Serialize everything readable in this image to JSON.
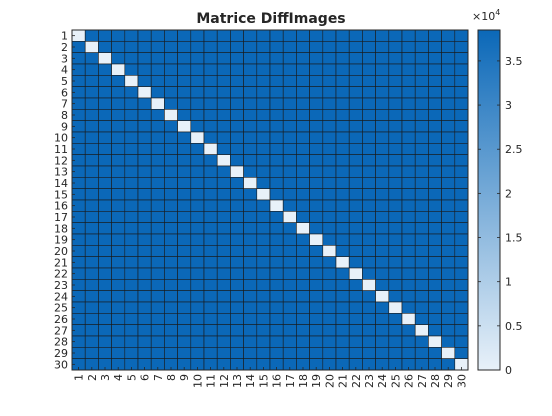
{
  "chart_data": {
    "type": "heatmap",
    "title": "Matrice DiffImages",
    "xlabel": "",
    "ylabel": "",
    "rows": [
      "1",
      "2",
      "3",
      "4",
      "5",
      "6",
      "7",
      "8",
      "9",
      "10",
      "11",
      "12",
      "13",
      "14",
      "15",
      "16",
      "17",
      "18",
      "19",
      "20",
      "21",
      "22",
      "23",
      "24",
      "25",
      "26",
      "27",
      "28",
      "29",
      "30"
    ],
    "cols": [
      "1",
      "2",
      "3",
      "4",
      "5",
      "6",
      "7",
      "8",
      "9",
      "10",
      "11",
      "12",
      "13",
      "14",
      "15",
      "16",
      "17",
      "18",
      "19",
      "20",
      "21",
      "22",
      "23",
      "24",
      "25",
      "26",
      "27",
      "28",
      "29",
      "30"
    ],
    "diagonal_value": 0,
    "off_diagonal_value": 38500,
    "colorbar": {
      "min": 0,
      "max": 38500,
      "ticks": [
        0,
        0.5,
        1,
        1.5,
        2,
        2.5,
        3,
        3.5
      ],
      "tick_labels": [
        "0",
        "0.5",
        "1",
        "1.5",
        "2",
        "2.5",
        "3",
        "3.5"
      ],
      "multiplier_base": "×10",
      "multiplier_exp": "4",
      "color_low": "#e8f1f9",
      "color_high": "#0b68b8"
    },
    "grid": true,
    "cell_edge_color": "#1a1a1a",
    "legend": "colorbar-right"
  }
}
